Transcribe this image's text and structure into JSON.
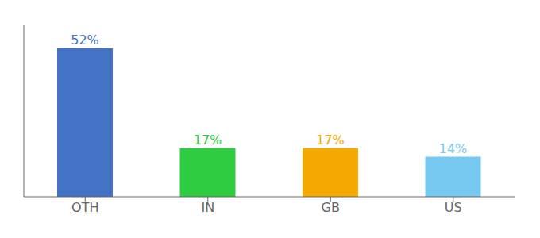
{
  "chart_data": {
    "type": "bar",
    "categories": [
      "OTH",
      "IN",
      "GB",
      "US"
    ],
    "values": [
      52,
      17,
      17,
      14
    ],
    "value_labels": [
      "52%",
      "17%",
      "17%",
      "14%"
    ],
    "colors": [
      "#4472c4",
      "#2ecc40",
      "#f4a800",
      "#76c8f0"
    ],
    "ylim": [
      0,
      60
    ],
    "data_labels": true,
    "tick_labels": "x",
    "grid": false
  }
}
